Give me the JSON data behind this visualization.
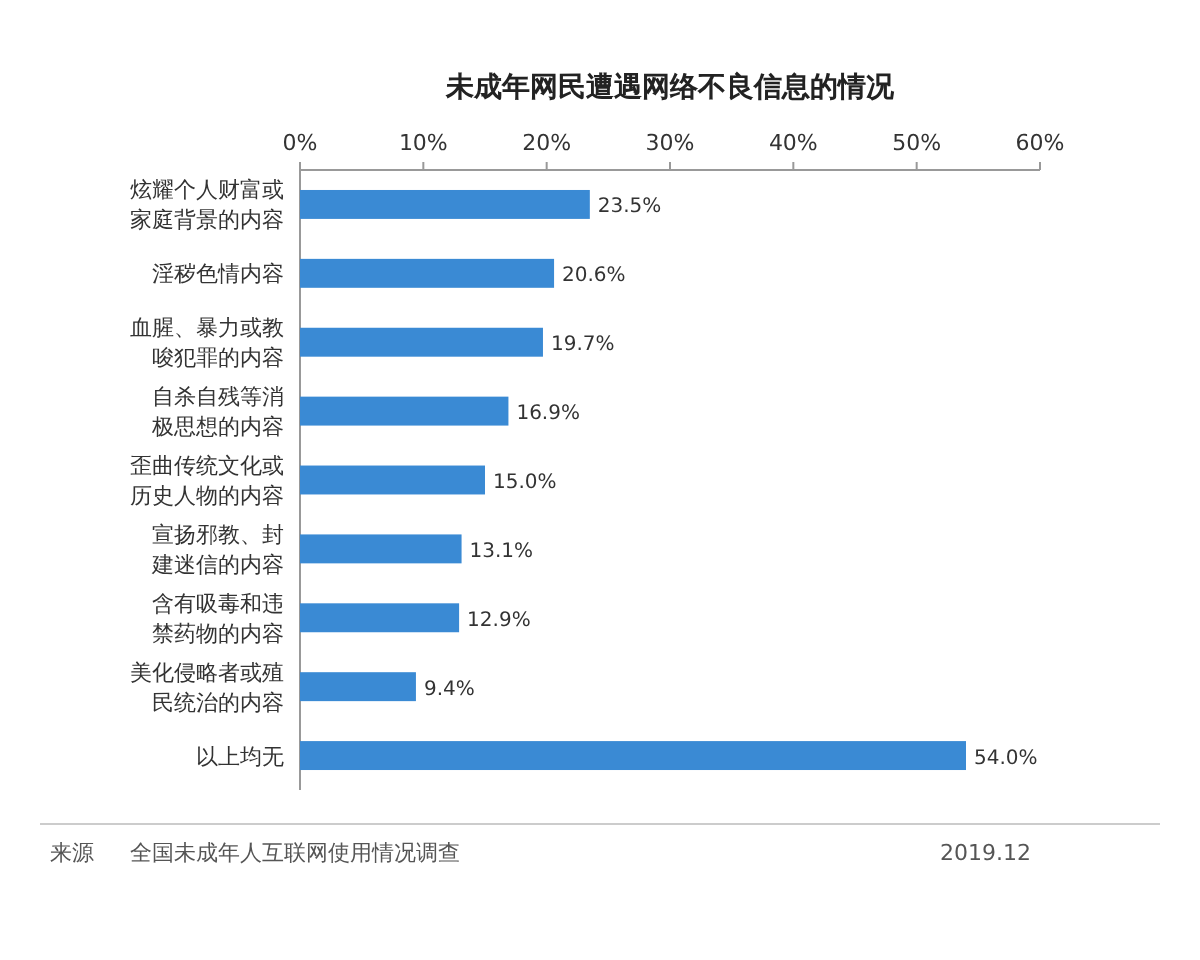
{
  "chart_data": {
    "type": "bar",
    "orientation": "horizontal",
    "title": "未成年网民遭遇网络不良信息的情况",
    "categories": [
      "炫耀个人财富或家庭背景的内容",
      "淫秽色情内容",
      "血腥、暴力或教唆犯罪的内容",
      "自杀自残等消极思想的内容",
      "歪曲传统文化或历史人物的内容",
      "宣扬邪教、封建迷信的内容",
      "含有吸毒和违禁药物的内容",
      "美化侵略者或殖民统治的内容",
      "以上均无"
    ],
    "values": [
      23.5,
      20.6,
      19.7,
      16.9,
      15.0,
      13.1,
      12.9,
      9.4,
      54.0
    ],
    "value_labels": [
      "23.5%",
      "20.6%",
      "19.7%",
      "16.9%",
      "15.0%",
      "13.1%",
      "12.9%",
      "9.4%",
      "54.0%"
    ],
    "color": "#3a8ad4",
    "xlim": [
      0,
      60
    ],
    "xticks": [
      {
        "value": 0,
        "label": "0%"
      },
      {
        "value": 10,
        "label": "10%"
      },
      {
        "value": 20,
        "label": "20%"
      },
      {
        "value": 30,
        "label": "30%"
      },
      {
        "value": 40,
        "label": "40%"
      },
      {
        "value": 50,
        "label": "50%"
      },
      {
        "value": 60,
        "label": "60%"
      }
    ],
    "annotations": [
      "来源",
      "全国未成年人互联网使用情况调查",
      "2019.12"
    ]
  }
}
